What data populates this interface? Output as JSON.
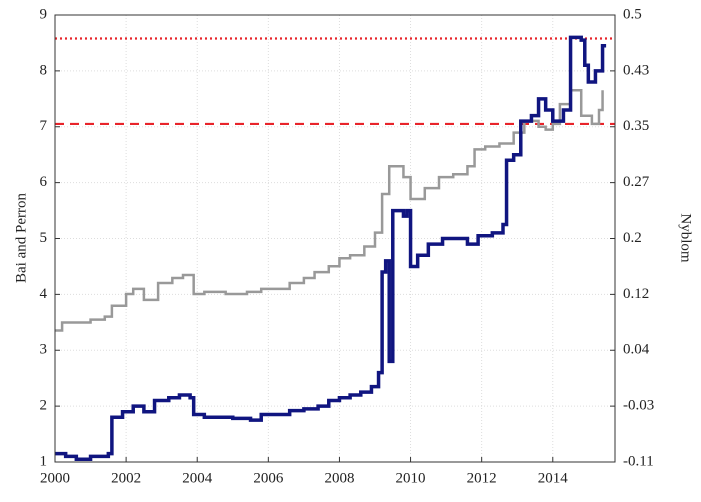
{
  "chart_data": {
    "type": "line",
    "step": true,
    "grid": true,
    "ylabel": "Bai and Perron",
    "y2label": "Nyblom",
    "xlim": [
      2000,
      2015.75
    ],
    "xticks": [
      2000,
      2002,
      2004,
      2006,
      2008,
      2010,
      2012,
      2014
    ],
    "ylim": [
      1,
      9
    ],
    "yticks": [
      1,
      2,
      3,
      4,
      5,
      6,
      7,
      8,
      9
    ],
    "y2lim": [
      -0.109,
      0.503
    ],
    "y2ticks": [
      {
        "value": -0.109,
        "label": "-0.11"
      },
      {
        "value": -0.0325,
        "label": "-0.03"
      },
      {
        "value": 0.044,
        "label": "0.04"
      },
      {
        "value": 0.1205,
        "label": "0.12"
      },
      {
        "value": 0.197,
        "label": "0.2"
      },
      {
        "value": 0.2735,
        "label": "0.27"
      },
      {
        "value": 0.35,
        "label": "0.35"
      },
      {
        "value": 0.4265,
        "label": "0.43"
      },
      {
        "value": 0.503,
        "label": "0.5"
      }
    ],
    "hlines": [
      {
        "value": 8.58,
        "color": "#e8242b",
        "style": "dotted"
      },
      {
        "value": 7.05,
        "color": "#e8242b",
        "style": "dashed"
      }
    ],
    "series": [
      {
        "color": "#101580",
        "axis": "y",
        "x": [
          2000,
          2000.3,
          2000.6,
          2001,
          2001.5,
          2001.6,
          2001.9,
          2002.2,
          2002.5,
          2002.8,
          2003.2,
          2003.5,
          2003.8,
          2003.9,
          2004.2,
          2004.6,
          2005,
          2005.5,
          2005.8,
          2006.2,
          2006.6,
          2007,
          2007.4,
          2007.7,
          2008,
          2008.3,
          2008.6,
          2008.9,
          2009.1,
          2009.2,
          2009.3,
          2009.4,
          2009.5,
          2009.8,
          2009.9,
          2010,
          2010.2,
          2010.5,
          2010.9,
          2011.3,
          2011.6,
          2011.9,
          2012.3,
          2012.6,
          2012.7,
          2012.9,
          2013.1,
          2013.4,
          2013.6,
          2013.8,
          2014,
          2014.3,
          2014.5,
          2014.8,
          2014.9,
          2015,
          2015.2,
          2015.4,
          2015.5
        ],
        "values": [
          1.15,
          1.1,
          1.05,
          1.1,
          1.15,
          1.8,
          1.9,
          2.0,
          1.9,
          2.1,
          2.15,
          2.2,
          2.15,
          1.85,
          1.8,
          1.8,
          1.78,
          1.75,
          1.85,
          1.85,
          1.92,
          1.95,
          2.0,
          2.1,
          2.15,
          2.2,
          2.25,
          2.35,
          2.6,
          4.4,
          4.6,
          2.8,
          5.5,
          5.4,
          5.5,
          4.5,
          4.7,
          4.9,
          5.0,
          5.0,
          4.9,
          5.05,
          5.1,
          5.25,
          6.4,
          6.5,
          7.1,
          7.2,
          7.5,
          7.3,
          7.1,
          7.3,
          8.6,
          8.55,
          8.1,
          7.8,
          8.0,
          8.45,
          8.45
        ]
      },
      {
        "color": "#999999",
        "axis": "y2",
        "x": [
          2000,
          2000.2,
          2000.6,
          2001,
          2001.4,
          2001.6,
          2002,
          2002.2,
          2002.5,
          2002.9,
          2003.3,
          2003.6,
          2003.9,
          2004.2,
          2004.8,
          2005.4,
          2005.8,
          2006.3,
          2006.6,
          2007,
          2007.3,
          2007.7,
          2008,
          2008.3,
          2008.7,
          2009,
          2009.2,
          2009.4,
          2009.8,
          2010,
          2010.4,
          2010.8,
          2011.2,
          2011.6,
          2011.8,
          2012.1,
          2012.5,
          2012.9,
          2013.2,
          2013.6,
          2013.8,
          2014,
          2014.2,
          2014.5,
          2014.8,
          2015.1,
          2015.3,
          2015.4
        ],
        "values": [
          0.071,
          0.082,
          0.082,
          0.086,
          0.09,
          0.105,
          0.121,
          0.128,
          0.113,
          0.136,
          0.143,
          0.147,
          0.121,
          0.124,
          0.121,
          0.124,
          0.128,
          0.128,
          0.136,
          0.143,
          0.151,
          0.159,
          0.17,
          0.174,
          0.186,
          0.205,
          0.258,
          0.296,
          0.281,
          0.251,
          0.266,
          0.281,
          0.285,
          0.296,
          0.319,
          0.323,
          0.327,
          0.342,
          0.358,
          0.35,
          0.346,
          0.354,
          0.381,
          0.4,
          0.365,
          0.354,
          0.373,
          0.4
        ]
      }
    ]
  }
}
